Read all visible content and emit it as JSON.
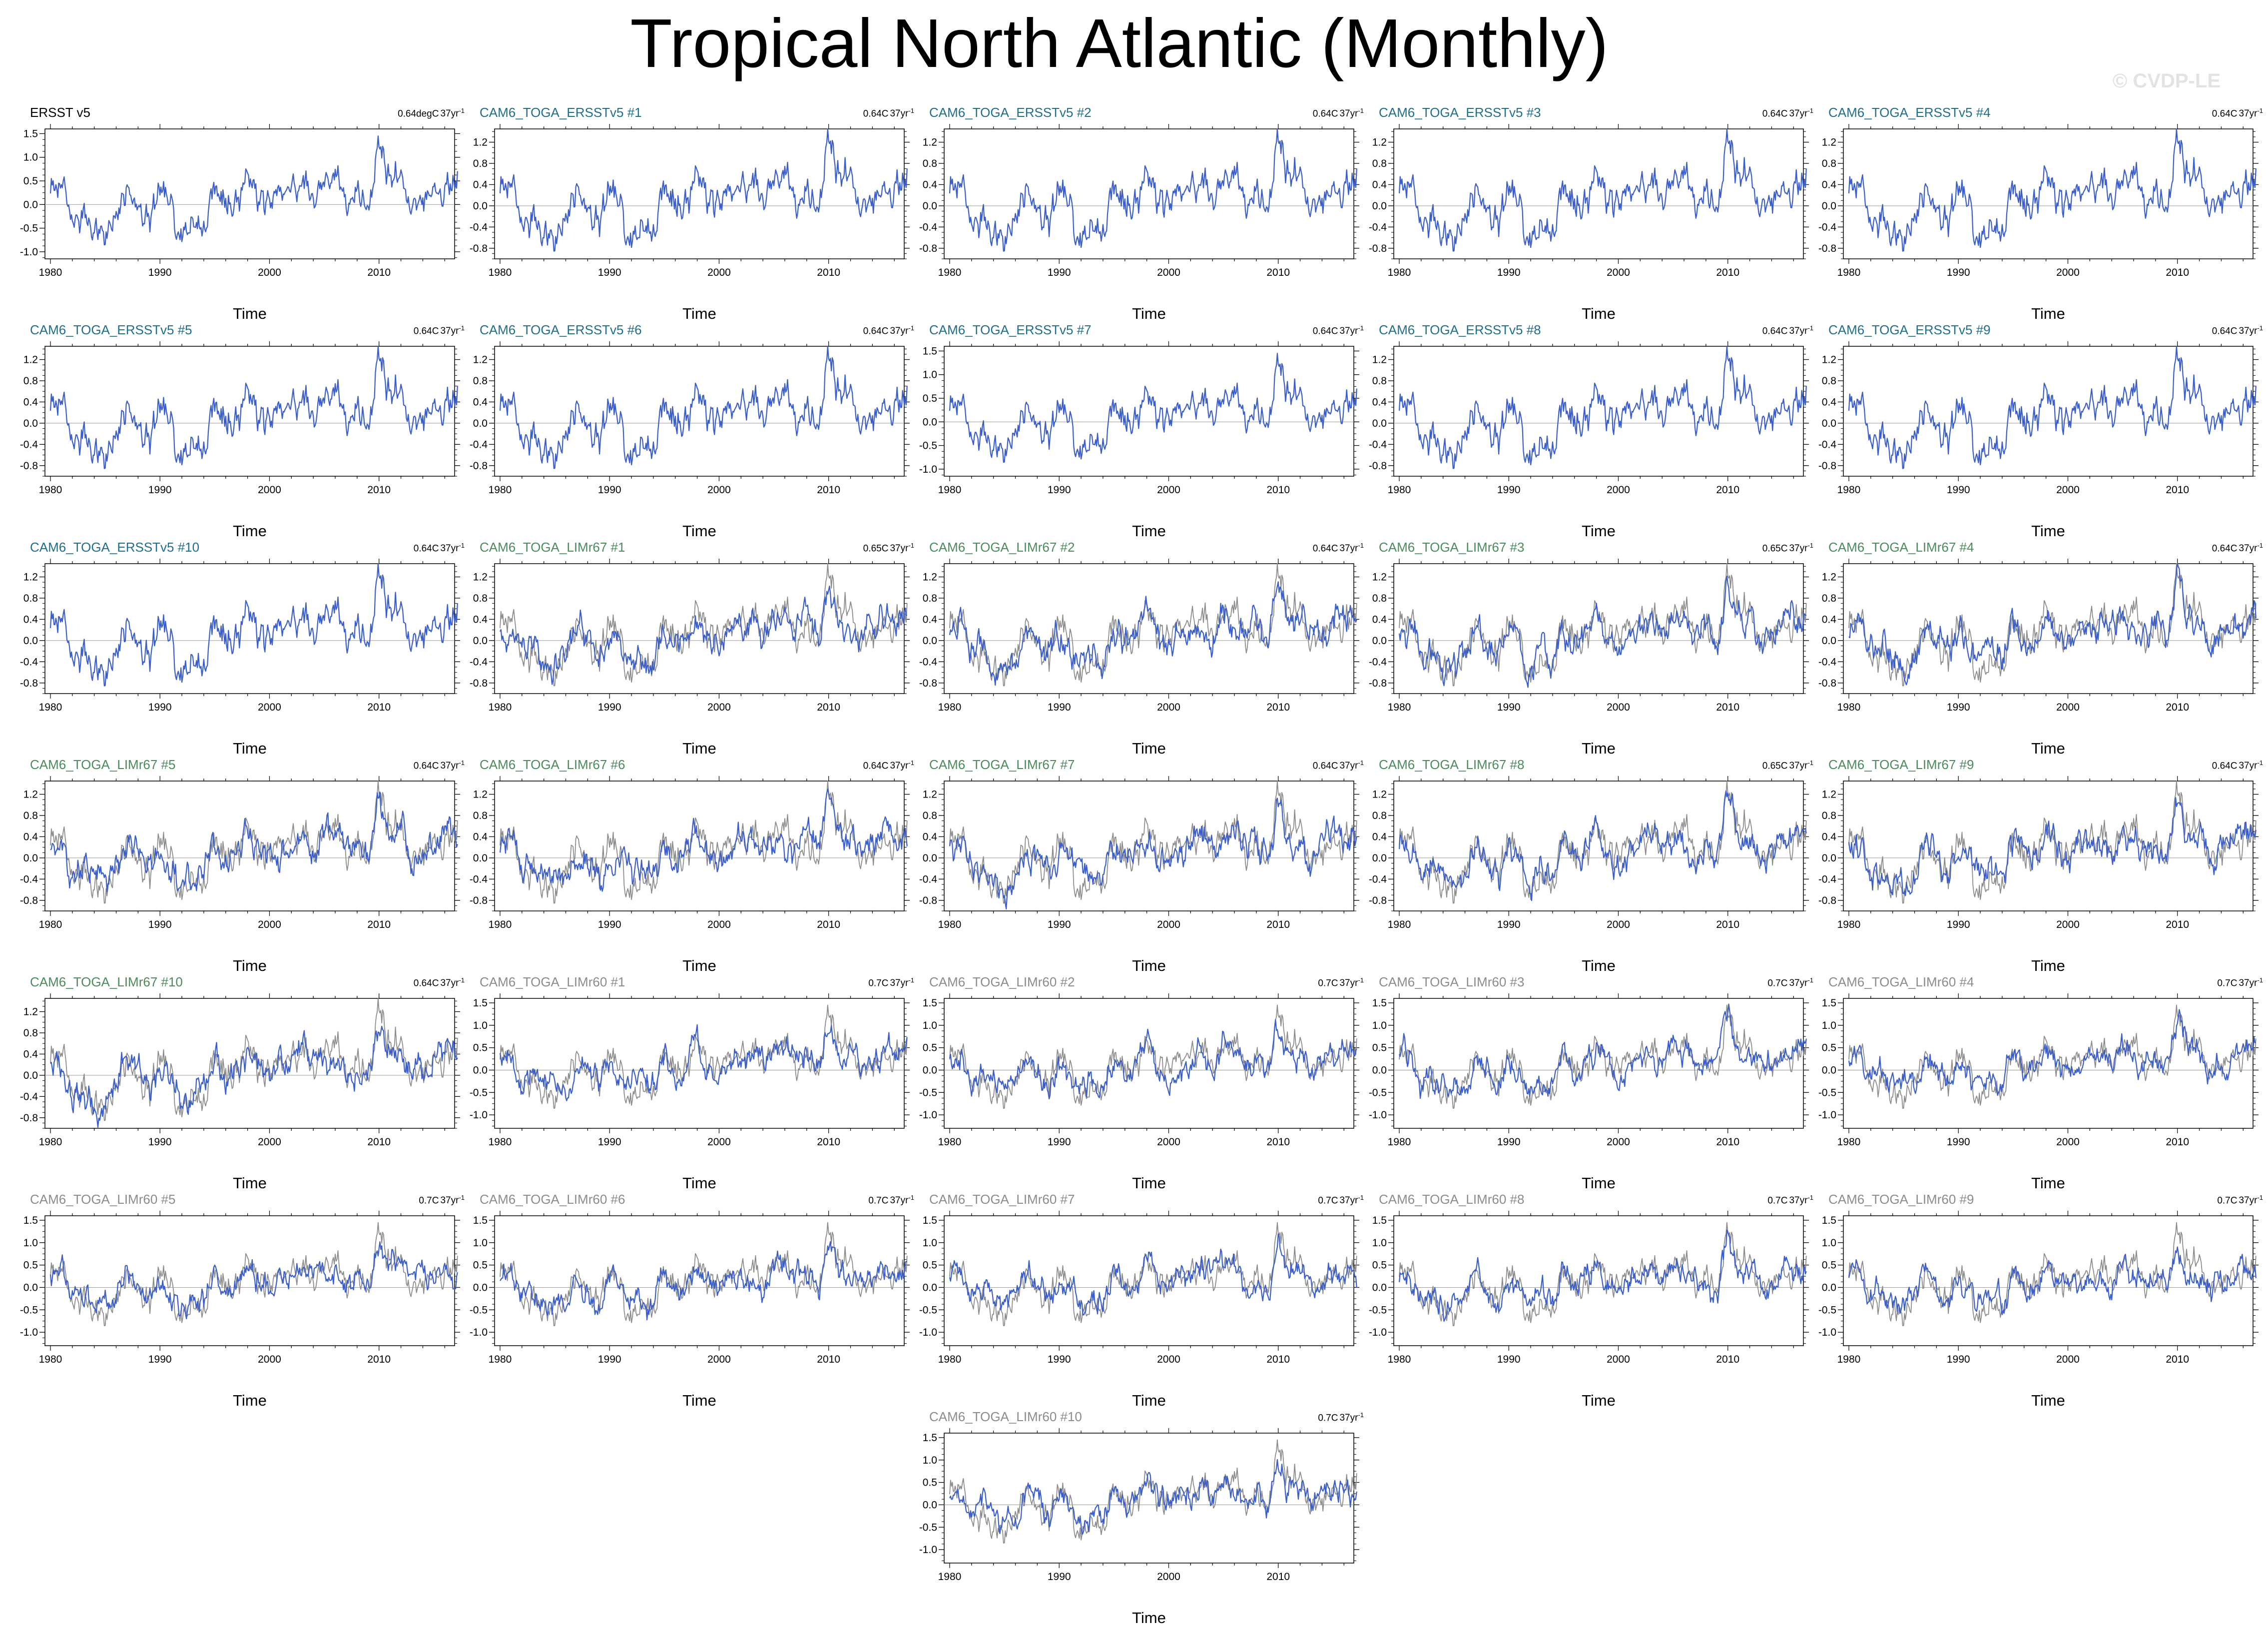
{
  "title": "Tropical North Atlantic (Monthly)",
  "watermark": "© CVDP-LE",
  "xlabel": "Time",
  "colors": {
    "observed": "#000000",
    "ERSSTv5": "#1f6f8b",
    "LIMr67": "#4a8c5c",
    "LIMr60": "#8c8c8c",
    "line_blue": "#3a5fcd",
    "line_gray": "#8c8c8c"
  },
  "chart_data": {
    "type": "line",
    "x_ticks": [
      1980,
      1990,
      2000,
      2010
    ],
    "xlim": [
      1979.5,
      2016.9
    ],
    "tick_sets": {
      "a": {
        "ylim": [
          -1.15,
          1.6
        ],
        "ticks": [
          -1.0,
          -0.5,
          0.0,
          0.5,
          1.0,
          1.5
        ],
        "labels": [
          "-1.0",
          "-0.5",
          "0.0",
          "0.5",
          "1.0",
          "1.5"
        ]
      },
      "b": {
        "ylim": [
          -1.0,
          1.45
        ],
        "ticks": [
          -0.8,
          -0.4,
          0.0,
          0.4,
          0.8,
          1.2
        ],
        "labels": [
          "-0.8",
          "-0.4",
          "0.0",
          "0.4",
          "0.8",
          "1.2"
        ]
      },
      "c": {
        "ylim": [
          -1.0,
          1.45
        ],
        "ticks": [
          -0.8,
          -0.4,
          0.0,
          0.4,
          0.8,
          1.2
        ],
        "labels": [
          "-0.8",
          "-0.4",
          "0.0",
          "0.4",
          "0.8",
          "1.2"
        ]
      },
      "d": {
        "ylim": [
          -1.3,
          1.6
        ],
        "ticks": [
          -1.0,
          -0.5,
          0.0,
          0.5,
          1.0,
          1.5
        ],
        "labels": [
          "-1.0",
          "-0.5",
          "0.0",
          "0.5",
          "1.0",
          "1.5"
        ]
      }
    },
    "reference_series": {
      "name": "ERSST v5",
      "x": [
        1980.0,
        1981.0,
        1982.0,
        1983.0,
        1984.0,
        1985.0,
        1986.0,
        1987.0,
        1988.0,
        1989.0,
        1990.0,
        1991.0,
        1992.0,
        1993.0,
        1994.0,
        1995.0,
        1996.0,
        1997.0,
        1998.0,
        1999.0,
        2000.0,
        2001.0,
        2002.0,
        2003.0,
        2004.0,
        2005.0,
        2006.0,
        2007.0,
        2008.0,
        2009.0,
        2010.0,
        2011.0,
        2012.0,
        2013.0,
        2014.0,
        2015.0,
        2016.0
      ],
      "values": [
        0.3,
        0.35,
        -0.4,
        -0.1,
        -0.6,
        -0.5,
        -0.45,
        0.3,
        0.0,
        -0.35,
        0.1,
        -0.2,
        -0.5,
        -0.3,
        -0.45,
        0.4,
        0.0,
        0.15,
        0.6,
        0.1,
        -0.1,
        0.2,
        0.3,
        0.5,
        0.2,
        0.6,
        0.45,
        0.15,
        0.3,
        0.0,
        1.35,
        0.5,
        0.55,
        0.0,
        0.2,
        0.4,
        0.55
      ]
    },
    "panels": [
      {
        "title": "ERSST v5",
        "group": "observed",
        "trend": "0.64degC",
        "period": "37yr",
        "ticks": "a",
        "overlay": false
      },
      {
        "title": "CAM6_TOGA_ERSSTv5 #1",
        "group": "ERSSTv5",
        "trend": "0.64C",
        "period": "37yr",
        "ticks": "b",
        "overlay": false
      },
      {
        "title": "CAM6_TOGA_ERSSTv5 #2",
        "group": "ERSSTv5",
        "trend": "0.64C",
        "period": "37yr",
        "ticks": "b",
        "overlay": false
      },
      {
        "title": "CAM6_TOGA_ERSSTv5 #3",
        "group": "ERSSTv5",
        "trend": "0.64C",
        "period": "37yr",
        "ticks": "b",
        "overlay": false
      },
      {
        "title": "CAM6_TOGA_ERSSTv5 #4",
        "group": "ERSSTv5",
        "trend": "0.64C",
        "period": "37yr",
        "ticks": "b",
        "overlay": false
      },
      {
        "title": "CAM6_TOGA_ERSSTv5 #5",
        "group": "ERSSTv5",
        "trend": "0.64C",
        "period": "37yr",
        "ticks": "b",
        "overlay": false
      },
      {
        "title": "CAM6_TOGA_ERSSTv5 #6",
        "group": "ERSSTv5",
        "trend": "0.64C",
        "period": "37yr",
        "ticks": "b",
        "overlay": false
      },
      {
        "title": "CAM6_TOGA_ERSSTv5 #7",
        "group": "ERSSTv5",
        "trend": "0.64C",
        "period": "37yr",
        "ticks": "a",
        "overlay": false
      },
      {
        "title": "CAM6_TOGA_ERSSTv5 #8",
        "group": "ERSSTv5",
        "trend": "0.64C",
        "period": "37yr",
        "ticks": "b",
        "overlay": false
      },
      {
        "title": "CAM6_TOGA_ERSSTv5 #9",
        "group": "ERSSTv5",
        "trend": "0.64C",
        "period": "37yr",
        "ticks": "b",
        "overlay": false
      },
      {
        "title": "CAM6_TOGA_ERSSTv5 #10",
        "group": "ERSSTv5",
        "trend": "0.64C",
        "period": "37yr",
        "ticks": "b",
        "overlay": false
      },
      {
        "title": "CAM6_TOGA_LIMr67 #1",
        "group": "LIMr67",
        "trend": "0.65C",
        "period": "37yr",
        "ticks": "c",
        "overlay": true
      },
      {
        "title": "CAM6_TOGA_LIMr67 #2",
        "group": "LIMr67",
        "trend": "0.64C",
        "period": "37yr",
        "ticks": "c",
        "overlay": true
      },
      {
        "title": "CAM6_TOGA_LIMr67 #3",
        "group": "LIMr67",
        "trend": "0.65C",
        "period": "37yr",
        "ticks": "c",
        "overlay": true
      },
      {
        "title": "CAM6_TOGA_LIMr67 #4",
        "group": "LIMr67",
        "trend": "0.64C",
        "period": "37yr",
        "ticks": "c",
        "overlay": true
      },
      {
        "title": "CAM6_TOGA_LIMr67 #5",
        "group": "LIMr67",
        "trend": "0.64C",
        "period": "37yr",
        "ticks": "c",
        "overlay": true
      },
      {
        "title": "CAM6_TOGA_LIMr67 #6",
        "group": "LIMr67",
        "trend": "0.64C",
        "period": "37yr",
        "ticks": "c",
        "overlay": true
      },
      {
        "title": "CAM6_TOGA_LIMr67 #7",
        "group": "LIMr67",
        "trend": "0.64C",
        "period": "37yr",
        "ticks": "c",
        "overlay": true
      },
      {
        "title": "CAM6_TOGA_LIMr67 #8",
        "group": "LIMr67",
        "trend": "0.65C",
        "period": "37yr",
        "ticks": "c",
        "overlay": true
      },
      {
        "title": "CAM6_TOGA_LIMr67 #9",
        "group": "LIMr67",
        "trend": "0.64C",
        "period": "37yr",
        "ticks": "c",
        "overlay": true
      },
      {
        "title": "CAM6_TOGA_LIMr67 #10",
        "group": "LIMr67",
        "trend": "0.64C",
        "period": "37yr",
        "ticks": "c",
        "overlay": true
      },
      {
        "title": "CAM6_TOGA_LIMr60 #1",
        "group": "LIMr60",
        "trend": "0.7C",
        "period": "37yr",
        "ticks": "d",
        "overlay": true
      },
      {
        "title": "CAM6_TOGA_LIMr60 #2",
        "group": "LIMr60",
        "trend": "0.7C",
        "period": "37yr",
        "ticks": "d",
        "overlay": true
      },
      {
        "title": "CAM6_TOGA_LIMr60 #3",
        "group": "LIMr60",
        "trend": "0.7C",
        "period": "37yr",
        "ticks": "d",
        "overlay": true
      },
      {
        "title": "CAM6_TOGA_LIMr60 #4",
        "group": "LIMr60",
        "trend": "0.7C",
        "period": "37yr",
        "ticks": "d",
        "overlay": true
      },
      {
        "title": "CAM6_TOGA_LIMr60 #5",
        "group": "LIMr60",
        "trend": "0.7C",
        "period": "37yr",
        "ticks": "d",
        "overlay": true
      },
      {
        "title": "CAM6_TOGA_LIMr60 #6",
        "group": "LIMr60",
        "trend": "0.7C",
        "period": "37yr",
        "ticks": "d",
        "overlay": true
      },
      {
        "title": "CAM6_TOGA_LIMr60 #7",
        "group": "LIMr60",
        "trend": "0.7C",
        "period": "37yr",
        "ticks": "d",
        "overlay": true
      },
      {
        "title": "CAM6_TOGA_LIMr60 #8",
        "group": "LIMr60",
        "trend": "0.7C",
        "period": "37yr",
        "ticks": "d",
        "overlay": true
      },
      {
        "title": "CAM6_TOGA_LIMr60 #9",
        "group": "LIMr60",
        "trend": "0.7C",
        "period": "37yr",
        "ticks": "d",
        "overlay": true
      },
      {
        "title": "CAM6_TOGA_LIMr60 #10",
        "group": "LIMr60",
        "trend": "0.7C",
        "period": "37yr",
        "ticks": "d",
        "overlay": true
      }
    ]
  }
}
